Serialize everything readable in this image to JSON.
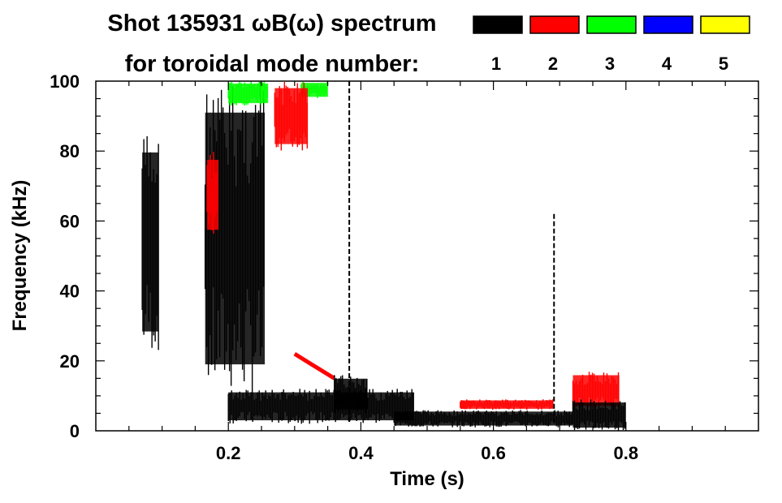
{
  "chart_data": {
    "type": "heatmap",
    "title_line1": "Shot 135931 ωB(ω) spectrum",
    "title_line2": "for toroidal mode number:",
    "xlabel": "Time (s)",
    "ylabel": "Frequency (kHz)",
    "xlim": [
      0.0,
      1.0
    ],
    "ylim": [
      0,
      100
    ],
    "x_ticks": [
      0.2,
      0.4,
      0.6,
      0.8
    ],
    "x_tick_labels": [
      "0.2",
      "0.4",
      "0.6",
      "0.8"
    ],
    "y_ticks": [
      0,
      20,
      40,
      60,
      80,
      100
    ],
    "y_tick_labels": [
      "0",
      "20",
      "40",
      "60",
      "80",
      "100"
    ],
    "legend_placement": "top-right",
    "legend": [
      {
        "label": "1",
        "color": "#000000"
      },
      {
        "label": "2",
        "color": "#ff0000"
      },
      {
        "label": "3",
        "color": "#00ff00"
      },
      {
        "label": "4",
        "color": "#0000ff"
      },
      {
        "label": "5",
        "color": "#ffff00"
      }
    ],
    "features": [
      {
        "mode": "1",
        "kind": "band",
        "t": [
          0.07,
          0.095
        ],
        "f": [
          22,
          86
        ]
      },
      {
        "mode": "1",
        "kind": "band",
        "t": [
          0.165,
          0.255
        ],
        "f": [
          10,
          100
        ]
      },
      {
        "mode": "2",
        "kind": "band",
        "t": [
          0.168,
          0.185
        ],
        "f": [
          55,
          80
        ]
      },
      {
        "mode": "3",
        "kind": "band",
        "t": [
          0.2,
          0.26
        ],
        "f": [
          93,
          100
        ]
      },
      {
        "mode": "3",
        "kind": "band",
        "t": [
          0.31,
          0.35
        ],
        "f": [
          95,
          100
        ]
      },
      {
        "mode": "2",
        "kind": "band",
        "t": [
          0.27,
          0.32
        ],
        "f": [
          80,
          100
        ]
      },
      {
        "mode": "1",
        "kind": "spike",
        "t": [
          0.38,
          0.385
        ],
        "f": [
          2,
          100
        ]
      },
      {
        "mode": "2",
        "kind": "chirp",
        "t": [
          0.3,
          0.36
        ],
        "f": [
          22,
          15
        ]
      },
      {
        "mode": "1",
        "kind": "band",
        "t": [
          0.2,
          0.48
        ],
        "f": [
          2,
          12
        ]
      },
      {
        "mode": "1",
        "kind": "band",
        "t": [
          0.36,
          0.41
        ],
        "f": [
          5,
          16
        ]
      },
      {
        "mode": "1",
        "kind": "band",
        "t": [
          0.45,
          0.72
        ],
        "f": [
          1,
          6
        ]
      },
      {
        "mode": "2",
        "kind": "band",
        "t": [
          0.55,
          0.69
        ],
        "f": [
          6,
          9
        ]
      },
      {
        "mode": "1",
        "kind": "spike",
        "t": [
          0.69,
          0.693
        ],
        "f": [
          2,
          62
        ]
      },
      {
        "mode": "2",
        "kind": "band",
        "t": [
          0.72,
          0.79
        ],
        "f": [
          6,
          17
        ]
      },
      {
        "mode": "1",
        "kind": "band",
        "t": [
          0.72,
          0.8
        ],
        "f": [
          0,
          9
        ]
      }
    ]
  }
}
